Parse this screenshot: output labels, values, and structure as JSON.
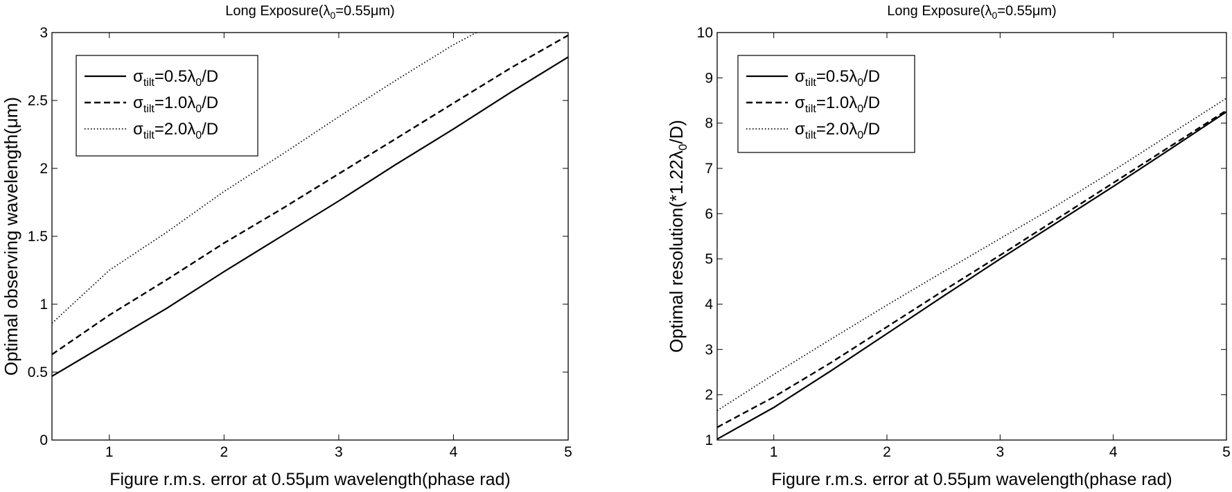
{
  "chart_data": [
    {
      "type": "line",
      "title": "Long Exposure(λ0=0.55μm)",
      "title_parts": {
        "pre": "Long Exposure(",
        "sym": "λ",
        "sub": "0",
        "post": "=0.55μm)"
      },
      "xlabel": "Figure r.m.s. error at 0.55μm wavelength(phase rad)",
      "ylabel": "Optimal observing wavelength(μm)",
      "xlim": [
        0.5,
        5
      ],
      "ylim": [
        0,
        3
      ],
      "xticks": [
        "1",
        "2",
        "3",
        "4",
        "5"
      ],
      "yticks": [
        "0",
        "0.5",
        "1",
        "1.5",
        "2",
        "2.5",
        "3"
      ],
      "grid": false,
      "legend_position": "top-left",
      "series": [
        {
          "name": "σtilt=0.5λ0/D",
          "label": {
            "sigma": "σ",
            "sub": "tilt",
            "mid": "=0.5λ",
            "sub2": "0",
            "post": "/D"
          },
          "style": "solid",
          "x": [
            0.5,
            1,
            1.5,
            2,
            2.5,
            3,
            3.5,
            4,
            4.5,
            5
          ],
          "y": [
            0.47,
            0.72,
            0.97,
            1.24,
            1.5,
            1.76,
            2.03,
            2.29,
            2.56,
            2.82
          ]
        },
        {
          "name": "σtilt=1.0λ0/D",
          "label": {
            "sigma": "σ",
            "sub": "tilt",
            "mid": "=1.0λ",
            "sub2": "0",
            "post": "/D"
          },
          "style": "dashed",
          "x": [
            0.5,
            1,
            1.5,
            2,
            2.5,
            3,
            3.5,
            4,
            4.5,
            5
          ],
          "y": [
            0.63,
            0.92,
            1.18,
            1.45,
            1.7,
            1.96,
            2.22,
            2.48,
            2.74,
            2.98
          ]
        },
        {
          "name": "σtilt=2.0λ0/D",
          "label": {
            "sigma": "σ",
            "sub": "tilt",
            "mid": "=2.0λ",
            "sub2": "0",
            "post": "/D"
          },
          "style": "dotted",
          "x": [
            0.5,
            1,
            1.5,
            2,
            2.5,
            3,
            3.5,
            4,
            4.2
          ],
          "y": [
            0.86,
            1.25,
            1.53,
            1.83,
            2.1,
            2.38,
            2.65,
            2.91,
            3.0
          ]
        }
      ]
    },
    {
      "type": "line",
      "title": "Long Exposure(λ0=0.55μm)",
      "title_parts": {
        "pre": "Long Exposure(",
        "sym": "λ",
        "sub": "0",
        "post": "=0.55μm)"
      },
      "xlabel": "Figure r.m.s. error at 0.55μm wavelength(phase rad)",
      "ylabel": "Optimal resolution(*1.22λ0/D)",
      "ylabel_parts": {
        "pre": "Optimal resolution(*1.22λ",
        "sub": "0",
        "post": "/D)"
      },
      "xlim": [
        0.5,
        5
      ],
      "ylim": [
        1,
        10
      ],
      "xticks": [
        "1",
        "2",
        "3",
        "4",
        "5"
      ],
      "yticks": [
        "1",
        "2",
        "3",
        "4",
        "5",
        "6",
        "7",
        "8",
        "9",
        "10"
      ],
      "grid": false,
      "legend_position": "top-left",
      "series": [
        {
          "name": "σtilt=0.5λ0/D",
          "label": {
            "sigma": "σ",
            "sub": "tilt",
            "mid": "=0.5λ",
            "sub2": "0",
            "post": "/D"
          },
          "style": "solid",
          "x": [
            0.5,
            1,
            1.5,
            2,
            2.5,
            3,
            3.5,
            4,
            4.5,
            5
          ],
          "y": [
            1.02,
            1.72,
            2.52,
            3.35,
            4.18,
            5.0,
            5.8,
            6.6,
            7.42,
            8.25
          ]
        },
        {
          "name": "σtilt=1.0λ0/D",
          "label": {
            "sigma": "σ",
            "sub": "tilt",
            "mid": "=1.0λ",
            "sub2": "0",
            "post": "/D"
          },
          "style": "dashed",
          "x": [
            0.5,
            1,
            1.5,
            2,
            2.5,
            3,
            3.5,
            4,
            4.5,
            5
          ],
          "y": [
            1.28,
            1.95,
            2.7,
            3.5,
            4.3,
            5.08,
            5.88,
            6.68,
            7.48,
            8.28
          ]
        },
        {
          "name": "σtilt=2.0λ0/D",
          "label": {
            "sigma": "σ",
            "sub": "tilt",
            "mid": "=2.0λ",
            "sub2": "0",
            "post": "/D"
          },
          "style": "dotted",
          "x": [
            0.5,
            1,
            1.5,
            2,
            2.5,
            3,
            3.5,
            4,
            4.5,
            5
          ],
          "y": [
            1.65,
            2.45,
            3.22,
            3.98,
            4.72,
            5.45,
            6.18,
            6.95,
            7.75,
            8.55
          ]
        }
      ]
    }
  ]
}
